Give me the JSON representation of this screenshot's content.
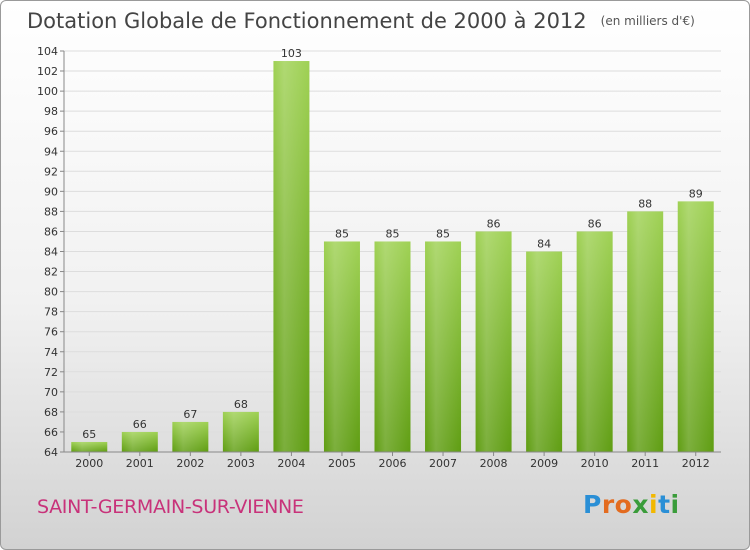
{
  "header": {
    "title": "Dotation Globale de Fonctionnement de 2000 à 2012",
    "unit": "(en milliers d'€)"
  },
  "footer": {
    "city": "SAINT-GERMAIN-SUR-VIENNE",
    "logo": {
      "letters": [
        "P",
        "r",
        "o",
        "x",
        "i",
        "t",
        "i"
      ],
      "text": "Proxiti"
    }
  },
  "chart_data": {
    "type": "bar",
    "title": "Dotation Globale de Fonctionnement de 2000 à 2012",
    "subtitle": "(en milliers d'€)",
    "xlabel": "",
    "ylabel": "",
    "categories": [
      "2000",
      "2001",
      "2002",
      "2003",
      "2004",
      "2005",
      "2006",
      "2007",
      "2008",
      "2009",
      "2010",
      "2011",
      "2012"
    ],
    "values": [
      65,
      66,
      67,
      68,
      103,
      85,
      85,
      85,
      86,
      84,
      86,
      88,
      89
    ],
    "ylim": [
      64,
      104
    ],
    "yticks": [
      64,
      66,
      68,
      70,
      72,
      74,
      76,
      78,
      80,
      82,
      84,
      86,
      88,
      90,
      92,
      94,
      96,
      98,
      100,
      102,
      104
    ],
    "grid": true,
    "bar_color": "#79b52a"
  }
}
